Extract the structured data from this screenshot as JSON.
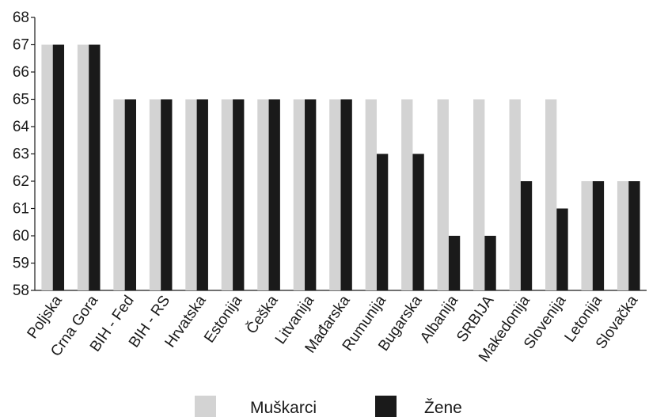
{
  "chart_data": {
    "type": "bar",
    "categories": [
      "Poljska",
      "Crna Gora",
      "BIH - Fed",
      "BIH - RS",
      "Hrvatska",
      "Estonija",
      "Češka",
      "Litvanija",
      "Mađarska",
      "Rumunija",
      "Bugarska",
      "Albanija",
      "SRBIJA",
      "Makedonija",
      "Slovenija",
      "Letonija",
      "Slovačka"
    ],
    "series": [
      {
        "name": "Muškarci",
        "color": "#d3d3d3",
        "values": [
          67,
          67,
          65,
          65,
          65,
          65,
          65,
          65,
          65,
          65,
          65,
          65,
          65,
          65,
          65,
          62,
          62
        ]
      },
      {
        "name": "Žene",
        "color": "#1a1a1a",
        "values": [
          67,
          67,
          65,
          65,
          65,
          65,
          65,
          65,
          65,
          63,
          63,
          60,
          60,
          62,
          61,
          62,
          62
        ]
      }
    ],
    "ylim": [
      58,
      68
    ],
    "yticks": [
      58,
      59,
      60,
      61,
      62,
      63,
      64,
      65,
      66,
      67,
      68
    ],
    "grid": false,
    "legend_position": "bottom-center"
  }
}
